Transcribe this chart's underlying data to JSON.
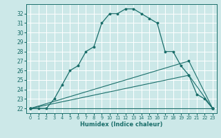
{
  "xlabel": "Humidex (Indice chaleur)",
  "ylabel": "",
  "bg_color": "#cce8e8",
  "line_color": "#1a6e6a",
  "grid_color": "#ffffff",
  "xlim": [
    -0.5,
    23.5
  ],
  "ylim": [
    21.5,
    33.0
  ],
  "yticks": [
    22,
    23,
    24,
    25,
    26,
    27,
    28,
    29,
    30,
    31,
    32
  ],
  "xticks": [
    0,
    1,
    2,
    3,
    4,
    5,
    6,
    7,
    8,
    9,
    10,
    11,
    12,
    13,
    14,
    15,
    16,
    17,
    18,
    19,
    20,
    21,
    22,
    23
  ],
  "curve1_x": [
    0,
    1,
    2,
    3,
    4,
    5,
    6,
    7,
    8,
    9,
    10,
    11,
    12,
    13,
    14,
    15,
    16,
    17,
    18,
    19,
    20,
    21,
    22,
    23
  ],
  "curve1_y": [
    22.0,
    22.0,
    22.0,
    23.0,
    24.5,
    26.0,
    26.5,
    28.0,
    28.5,
    31.0,
    32.0,
    32.0,
    32.5,
    32.5,
    32.0,
    31.5,
    31.0,
    28.0,
    28.0,
    26.5,
    25.5,
    23.5,
    23.0,
    22.0
  ],
  "curve2_x": [
    0,
    23
  ],
  "curve2_y": [
    22.0,
    22.0
  ],
  "curve3_x": [
    0,
    20,
    23
  ],
  "curve3_y": [
    22.0,
    27.0,
    22.0
  ],
  "curve4_x": [
    0,
    20,
    23
  ],
  "curve4_y": [
    22.0,
    25.5,
    22.0
  ],
  "figwidth": 3.2,
  "figheight": 2.0,
  "dpi": 100
}
